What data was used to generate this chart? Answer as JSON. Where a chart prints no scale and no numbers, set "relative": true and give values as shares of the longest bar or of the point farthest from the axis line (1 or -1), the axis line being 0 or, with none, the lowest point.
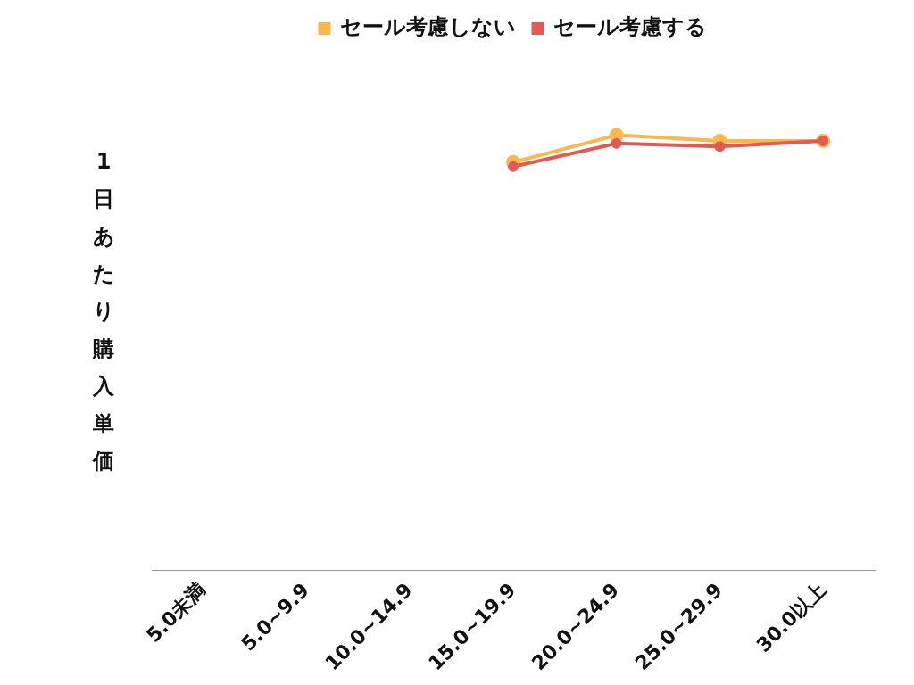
{
  "chart_data": {
    "type": "line",
    "ylabel": "1日あたり購入単価",
    "relative": true,
    "categories": [
      "5.0未満",
      "5.0~9.9",
      "10.0~14.9",
      "15.0~19.9",
      "20.0~24.9",
      "25.0~29.9",
      "30.0以上"
    ],
    "series": [
      {
        "name": "セール考慮しない",
        "color": "#fbb84f",
        "values": [
          null,
          null,
          null,
          0.938,
          1,
          0.987,
          0.987
        ]
      },
      {
        "name": "セール考慮する",
        "color": "#e35a55",
        "values": [
          null,
          null,
          null,
          0.928,
          0.981,
          0.974,
          0.987
        ]
      }
    ],
    "legend": "top",
    "marker": "circle",
    "line_style": "solid"
  }
}
